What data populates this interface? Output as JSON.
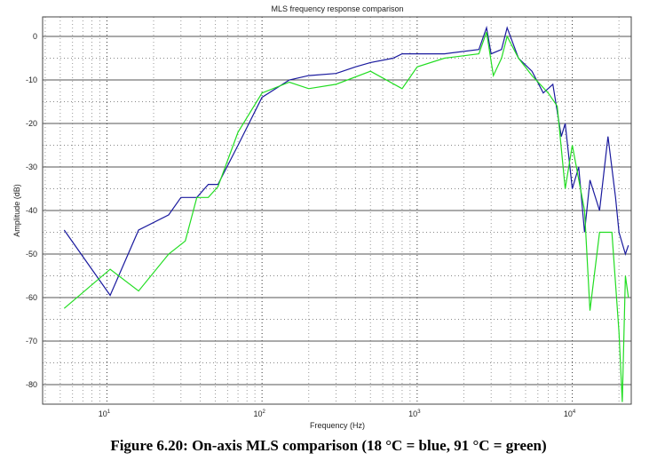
{
  "chart_data": {
    "type": "line",
    "title": "MLS frequency response comparison",
    "xlabel": "Frequency (Hz)",
    "ylabel": "Amplitude (dB)",
    "xscale": "log",
    "xlim": [
      3.85,
      24000
    ],
    "ylim": [
      -84.5,
      4.5
    ],
    "xticks": [
      {
        "base": "10",
        "exp": "1",
        "value": 10
      },
      {
        "base": "10",
        "exp": "2",
        "value": 100
      },
      {
        "base": "10",
        "exp": "3",
        "value": 1000
      },
      {
        "base": "10",
        "exp": "4",
        "value": 10000
      }
    ],
    "yticks": [
      0,
      -10,
      -20,
      -30,
      -40,
      -50,
      -60,
      -70,
      -80
    ],
    "grid": true,
    "series": [
      {
        "name": "18 °C",
        "color": "#1a1a9e",
        "points": [
          [
            5.3,
            -44.5
          ],
          [
            10.5,
            -59.5
          ],
          [
            16,
            -44.5
          ],
          [
            25,
            -41
          ],
          [
            30,
            -37
          ],
          [
            38,
            -37
          ],
          [
            45,
            -34
          ],
          [
            52,
            -34
          ],
          [
            70,
            -25
          ],
          [
            100,
            -14
          ],
          [
            150,
            -10
          ],
          [
            200,
            -9
          ],
          [
            300,
            -8.5
          ],
          [
            400,
            -7
          ],
          [
            500,
            -6
          ],
          [
            700,
            -5
          ],
          [
            800,
            -4
          ],
          [
            1000,
            -4
          ],
          [
            1500,
            -4
          ],
          [
            2500,
            -3
          ],
          [
            2800,
            2
          ],
          [
            3000,
            -4
          ],
          [
            3500,
            -3
          ],
          [
            3800,
            2
          ],
          [
            4500,
            -5
          ],
          [
            5500,
            -8
          ],
          [
            6500,
            -13
          ],
          [
            7500,
            -11
          ],
          [
            8500,
            -23
          ],
          [
            9000,
            -20
          ],
          [
            10000,
            -35
          ],
          [
            11000,
            -30
          ],
          [
            12000,
            -45
          ],
          [
            13000,
            -33
          ],
          [
            15000,
            -40
          ],
          [
            17000,
            -23
          ],
          [
            19000,
            -37
          ],
          [
            20000,
            -45
          ],
          [
            22000,
            -50
          ],
          [
            23000,
            -48
          ]
        ]
      },
      {
        "name": "91 °C",
        "color": "#22dd22",
        "points": [
          [
            5.3,
            -62.5
          ],
          [
            10.5,
            -53.5
          ],
          [
            16,
            -58.5
          ],
          [
            25,
            -50
          ],
          [
            32,
            -47
          ],
          [
            38,
            -37
          ],
          [
            45,
            -37
          ],
          [
            52,
            -34.5
          ],
          [
            70,
            -22
          ],
          [
            100,
            -13
          ],
          [
            150,
            -10.5
          ],
          [
            200,
            -12
          ],
          [
            300,
            -11
          ],
          [
            500,
            -8
          ],
          [
            800,
            -12
          ],
          [
            1000,
            -7
          ],
          [
            1500,
            -5
          ],
          [
            2500,
            -4
          ],
          [
            2800,
            1
          ],
          [
            3100,
            -9
          ],
          [
            3500,
            -5
          ],
          [
            3800,
            0
          ],
          [
            4500,
            -5
          ],
          [
            5500,
            -9
          ],
          [
            7000,
            -13
          ],
          [
            8000,
            -16
          ],
          [
            9000,
            -35
          ],
          [
            10000,
            -25
          ],
          [
            12000,
            -40
          ],
          [
            13000,
            -63
          ],
          [
            15000,
            -45
          ],
          [
            18000,
            -45
          ],
          [
            20000,
            -68
          ],
          [
            21000,
            -84
          ],
          [
            22000,
            -55
          ],
          [
            23000,
            -60
          ]
        ]
      }
    ]
  },
  "caption": "Figure 6.20: On-axis MLS comparison (18 °C = blue,  91 °C = green)"
}
